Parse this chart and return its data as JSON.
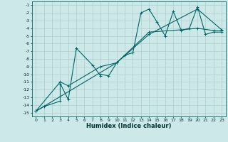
{
  "xlabel": "Humidex (Indice chaleur)",
  "background_color": "#cde8e8",
  "grid_color": "#aecece",
  "line_color": "#006666",
  "xlim": [
    -0.5,
    23.5
  ],
  "ylim": [
    -15.5,
    -0.5
  ],
  "xticks": [
    0,
    1,
    2,
    3,
    4,
    5,
    6,
    7,
    8,
    9,
    10,
    11,
    12,
    13,
    14,
    15,
    16,
    17,
    18,
    19,
    20,
    21,
    22,
    23
  ],
  "yticks": [
    -15,
    -14,
    -13,
    -12,
    -11,
    -10,
    -9,
    -8,
    -7,
    -6,
    -5,
    -4,
    -3,
    -2,
    -1
  ],
  "series1": [
    [
      0,
      -14.8
    ],
    [
      1,
      -14.2
    ],
    [
      3,
      -13.5
    ],
    [
      3,
      -11.2
    ],
    [
      4,
      -13.3
    ],
    [
      5,
      -6.6
    ],
    [
      7,
      -8.8
    ],
    [
      8,
      -10.2
    ],
    [
      8,
      -10.0
    ],
    [
      9,
      -10.2
    ],
    [
      10,
      -8.5
    ],
    [
      11,
      -7.5
    ],
    [
      12,
      -7.2
    ],
    [
      13,
      -2.0
    ],
    [
      14,
      -1.5
    ],
    [
      15,
      -3.2
    ],
    [
      16,
      -5.0
    ],
    [
      17,
      -1.8
    ],
    [
      18,
      -4.3
    ],
    [
      19,
      -4.0
    ],
    [
      20,
      -1.2
    ],
    [
      21,
      -4.8
    ],
    [
      22,
      -4.5
    ],
    [
      23,
      -4.5
    ]
  ],
  "series2": [
    [
      0,
      -14.8
    ],
    [
      3,
      -11.0
    ],
    [
      4,
      -11.5
    ],
    [
      8,
      -9.0
    ],
    [
      10,
      -8.5
    ],
    [
      14,
      -4.5
    ],
    [
      18,
      -4.2
    ],
    [
      20,
      -4.0
    ],
    [
      22,
      -4.3
    ],
    [
      23,
      -4.3
    ]
  ],
  "series3": [
    [
      0,
      -14.8
    ],
    [
      10,
      -8.5
    ],
    [
      14,
      -4.8
    ],
    [
      20,
      -1.5
    ],
    [
      23,
      -4.2
    ]
  ]
}
